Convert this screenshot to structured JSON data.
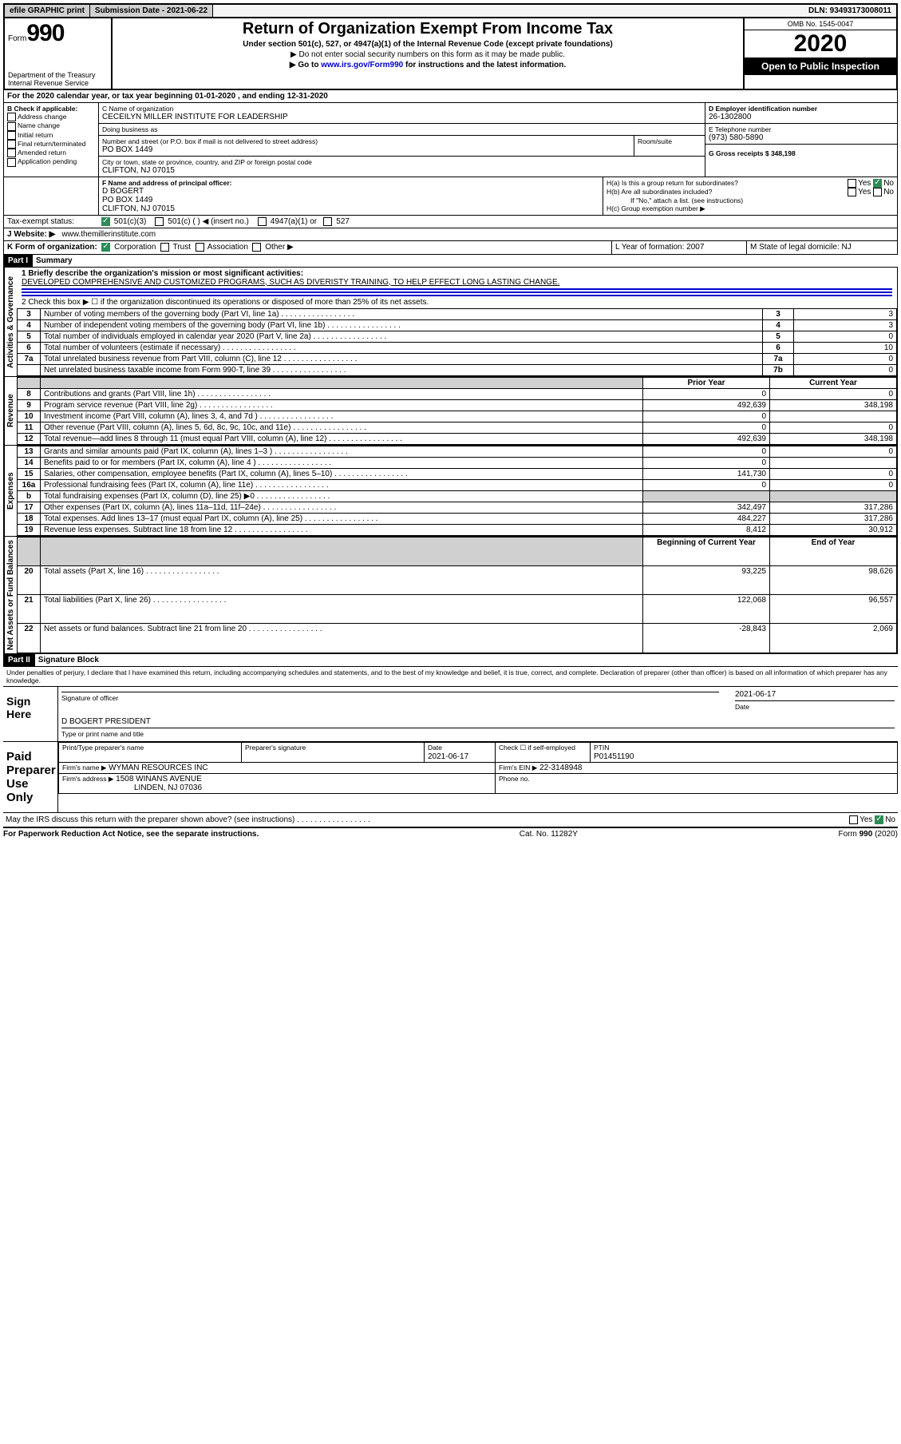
{
  "topbar": {
    "efile": "efile GRAPHIC print",
    "submission_label": "Submission Date - 2021-06-22",
    "dln": "DLN: 93493173008011"
  },
  "header": {
    "form_word": "Form",
    "form_num": "990",
    "dept": "Department of the Treasury\nInternal Revenue Service",
    "title": "Return of Organization Exempt From Income Tax",
    "subtitle": "Under section 501(c), 527, or 4947(a)(1) of the Internal Revenue Code (except private foundations)",
    "note1": "▶ Do not enter social security numbers on this form as it may be made public.",
    "note2_pre": "▶ Go to ",
    "note2_link": "www.irs.gov/Form990",
    "note2_post": " for instructions and the latest information.",
    "omb": "OMB No. 1545-0047",
    "year": "2020",
    "open": "Open to Public Inspection"
  },
  "line_a": "For the 2020 calendar year, or tax year beginning 01-01-2020   , and ending 12-31-2020",
  "box_b": {
    "label": "B Check if applicable:",
    "opts": [
      "Address change",
      "Name change",
      "Initial return",
      "Final return/terminated",
      "Amended return",
      "Application pending"
    ]
  },
  "box_c": {
    "label": "C Name of organization",
    "name": "CECEILYN MILLER INSTITUTE FOR LEADERSHIP",
    "dba_label": "Doing business as",
    "street_label": "Number and street (or P.O. box if mail is not delivered to street address)",
    "room_label": "Room/suite",
    "street": "PO BOX 1449",
    "city_label": "City or town, state or province, country, and ZIP or foreign postal code",
    "city": "CLIFTON, NJ  07015"
  },
  "box_d": {
    "label": "D Employer identification number",
    "val": "26-1302800"
  },
  "box_e": {
    "label": "E Telephone number",
    "val": "(973) 580-5890"
  },
  "box_g": "G Gross receipts $ 348,198",
  "box_f": {
    "label": "F Name and address of principal officer:",
    "name": "D BOGERT",
    "addr1": "PO BOX 1449",
    "addr2": "CLIFTON, NJ  07015"
  },
  "box_h": {
    "a": "H(a)  Is this a group return for subordinates?",
    "b": "H(b)  Are all subordinates included?",
    "b_note": "If \"No,\" attach a list. (see instructions)",
    "c": "H(c)  Group exemption number ▶",
    "yes": "Yes",
    "no": "No"
  },
  "box_i": {
    "label": "Tax-exempt status:",
    "o1": "501(c)(3)",
    "o2": "501(c) (  ) ◀ (insert no.)",
    "o3": "4947(a)(1) or",
    "o4": "527"
  },
  "box_j": {
    "label": "J   Website: ▶",
    "val": "www.themillerinstitute.com"
  },
  "box_k": {
    "label": "K Form of organization:",
    "o1": "Corporation",
    "o2": "Trust",
    "o3": "Association",
    "o4": "Other ▶"
  },
  "box_l": "L Year of formation: 2007",
  "box_m": "M State of legal domicile: NJ",
  "part1": {
    "header": "Part I",
    "title": "Summary",
    "l1": "1  Briefly describe the organization's mission or most significant activities:",
    "mission": "DEVELOPED COMPREHENSIVE AND CUSTOMIZED PROGRAMS, SUCH AS DIVERISTY TRAINING, TO HELP EFFECT LONG LASTING CHANGE.",
    "l2": "2   Check this box ▶ ☐  if the organization discontinued its operations or disposed of more than 25% of its net assets.",
    "side_gov": "Activities & Governance",
    "side_rev": "Revenue",
    "side_exp": "Expenses",
    "side_net": "Net Assets or Fund Balances",
    "col_prior": "Prior Year",
    "col_curr": "Current Year",
    "col_begin": "Beginning of Current Year",
    "col_end": "End of Year",
    "rows_gov": [
      {
        "n": "3",
        "t": "Number of voting members of the governing body (Part VI, line 1a)",
        "box": "3",
        "v": "3"
      },
      {
        "n": "4",
        "t": "Number of independent voting members of the governing body (Part VI, line 1b)",
        "box": "4",
        "v": "3"
      },
      {
        "n": "5",
        "t": "Total number of individuals employed in calendar year 2020 (Part V, line 2a)",
        "box": "5",
        "v": "0"
      },
      {
        "n": "6",
        "t": "Total number of volunteers (estimate if necessary)",
        "box": "6",
        "v": "10"
      },
      {
        "n": "7a",
        "t": "Total unrelated business revenue from Part VIII, column (C), line 12",
        "box": "7a",
        "v": "0"
      },
      {
        "n": "",
        "t": "Net unrelated business taxable income from Form 990-T, line 39",
        "box": "7b",
        "v": "0"
      }
    ],
    "rows_rev": [
      {
        "n": "8",
        "t": "Contributions and grants (Part VIII, line 1h)",
        "p": "0",
        "c": "0"
      },
      {
        "n": "9",
        "t": "Program service revenue (Part VIII, line 2g)",
        "p": "492,639",
        "c": "348,198"
      },
      {
        "n": "10",
        "t": "Investment income (Part VIII, column (A), lines 3, 4, and 7d )",
        "p": "0",
        "c": ""
      },
      {
        "n": "11",
        "t": "Other revenue (Part VIII, column (A), lines 5, 6d, 8c, 9c, 10c, and 11e)",
        "p": "0",
        "c": "0"
      },
      {
        "n": "12",
        "t": "Total revenue—add lines 8 through 11 (must equal Part VIII, column (A), line 12)",
        "p": "492,639",
        "c": "348,198"
      }
    ],
    "rows_exp": [
      {
        "n": "13",
        "t": "Grants and similar amounts paid (Part IX, column (A), lines 1–3 )",
        "p": "0",
        "c": "0"
      },
      {
        "n": "14",
        "t": "Benefits paid to or for members (Part IX, column (A), line 4 )",
        "p": "0",
        "c": ""
      },
      {
        "n": "15",
        "t": "Salaries, other compensation, employee benefits (Part IX, column (A), lines 5–10)",
        "p": "141,730",
        "c": "0"
      },
      {
        "n": "16a",
        "t": "Professional fundraising fees (Part IX, column (A), line 11e)",
        "p": "0",
        "c": "0"
      },
      {
        "n": "b",
        "t": "Total fundraising expenses (Part IX, column (D), line 25) ▶0",
        "p": "shade",
        "c": "shade"
      },
      {
        "n": "17",
        "t": "Other expenses (Part IX, column (A), lines 11a–11d, 11f–24e)",
        "p": "342,497",
        "c": "317,286"
      },
      {
        "n": "18",
        "t": "Total expenses. Add lines 13–17 (must equal Part IX, column (A), line 25)",
        "p": "484,227",
        "c": "317,286"
      },
      {
        "n": "19",
        "t": "Revenue less expenses. Subtract line 18 from line 12",
        "p": "8,412",
        "c": "30,912"
      }
    ],
    "rows_net": [
      {
        "n": "20",
        "t": "Total assets (Part X, line 16)",
        "p": "93,225",
        "c": "98,626"
      },
      {
        "n": "21",
        "t": "Total liabilities (Part X, line 26)",
        "p": "122,068",
        "c": "96,557"
      },
      {
        "n": "22",
        "t": "Net assets or fund balances. Subtract line 21 from line 20",
        "p": "-28,843",
        "c": "2,069"
      }
    ]
  },
  "part2": {
    "header": "Part II",
    "title": "Signature Block",
    "decl": "Under penalties of perjury, I declare that I have examined this return, including accompanying schedules and statements, and to the best of my knowledge and belief, it is true, correct, and complete. Declaration of preparer (other than officer) is based on all information of which preparer has any knowledge.",
    "sign_here": "Sign Here",
    "sig_officer": "Signature of officer",
    "sig_date": "2021-06-17",
    "date_lbl": "Date",
    "officer": "D BOGERT PRESIDENT",
    "officer_lbl": "Type or print name and title",
    "paid": "Paid Preparer Use Only",
    "prep_name_lbl": "Print/Type preparer's name",
    "prep_sig_lbl": "Preparer's signature",
    "prep_date": "2021-06-17",
    "check_self": "Check ☐ if self-employed",
    "ptin_lbl": "PTIN",
    "ptin": "P01451190",
    "firm_name_lbl": "Firm's name    ▶",
    "firm_name": "WYMAN RESOURCES INC",
    "firm_ein_lbl": "Firm's EIN ▶",
    "firm_ein": "22-3148948",
    "firm_addr_lbl": "Firm's address ▶",
    "firm_addr1": "1508 WINANS AVENUE",
    "firm_addr2": "LINDEN, NJ  07036",
    "phone_lbl": "Phone no.",
    "discuss": "May the IRS discuss this return with the preparer shown above? (see instructions)"
  },
  "footer": {
    "left": "For Paperwork Reduction Act Notice, see the separate instructions.",
    "mid": "Cat. No. 11282Y",
    "right": "Form 990 (2020)"
  }
}
